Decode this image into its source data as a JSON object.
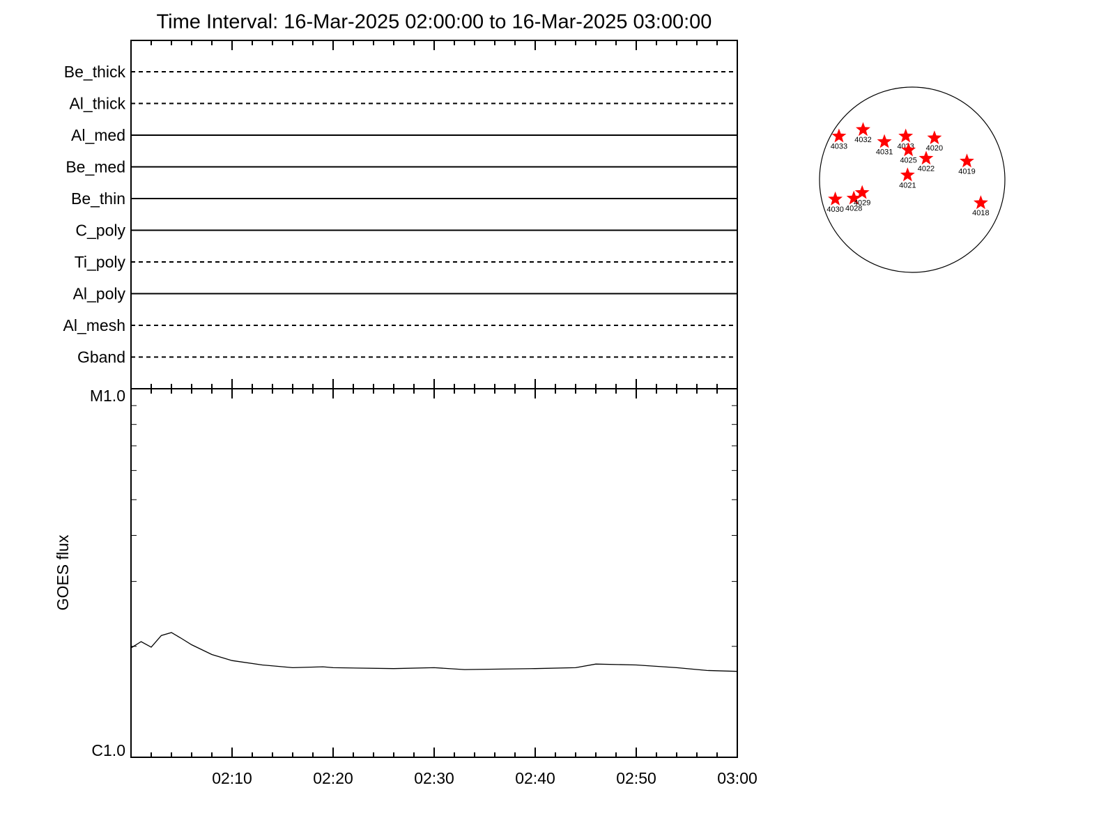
{
  "chart_data": [
    {
      "type": "filter-strip",
      "title": "Time Interval: 16-Mar-2025 02:00:00 to 16-Mar-2025 03:00:00",
      "categories": [
        "Be_thick",
        "Al_thick",
        "Al_med",
        "Be_med",
        "Be_thin",
        "C_poly",
        "Ti_poly",
        "Al_poly",
        "Al_mesh",
        "Gband"
      ],
      "line_styles": [
        "dashed",
        "dashed",
        "solid",
        "solid",
        "solid",
        "solid",
        "dashed",
        "solid",
        "dashed",
        "dashed"
      ],
      "color": "#000000"
    },
    {
      "type": "line",
      "ylabel": "GOES flux",
      "log_scale": true,
      "x": [
        "02:00",
        "02:01",
        "02:02",
        "02:03",
        "02:04",
        "02:05",
        "02:06",
        "02:08",
        "02:10",
        "02:13",
        "02:16",
        "02:19",
        "02:20",
        "02:26",
        "02:30",
        "02:33",
        "02:40",
        "02:44",
        "02:46",
        "02:50",
        "02:54",
        "02:57",
        "03:00"
      ],
      "values": [
        1.98e-06,
        2.06e-06,
        1.99e-06,
        2.14e-06,
        2.18e-06,
        2.1e-06,
        2.02e-06,
        1.9e-06,
        1.83e-06,
        1.78e-06,
        1.75e-06,
        1.76e-06,
        1.75e-06,
        1.74e-06,
        1.75e-06,
        1.73e-06,
        1.74e-06,
        1.75e-06,
        1.79e-06,
        1.78e-06,
        1.75e-06,
        1.72e-06,
        1.71e-06
      ],
      "xlim": [
        "02:00",
        "03:00"
      ],
      "xticks": [
        "02:10",
        "02:20",
        "02:30",
        "02:40",
        "02:50",
        "03:00"
      ],
      "ylim": [
        1e-06,
        1e-05
      ],
      "yticks": [
        {
          "value": 1e-05,
          "label": "M1.0"
        },
        {
          "value": 1e-06,
          "label": "C1.0"
        }
      ],
      "color": "#000000"
    },
    {
      "type": "scatter",
      "labels": [
        "4033",
        "4032",
        "4031",
        "4023",
        "4020",
        "4025",
        "4022",
        "4019",
        "4021",
        "4030",
        "4028",
        "4029",
        "4018"
      ],
      "x": [
        -0.79,
        -0.53,
        -0.3,
        -0.07,
        0.24,
        -0.04,
        0.15,
        0.59,
        -0.05,
        -0.83,
        -0.63,
        -0.54,
        0.74
      ],
      "y": [
        0.47,
        0.54,
        0.41,
        0.47,
        0.45,
        0.32,
        0.23,
        0.2,
        0.05,
        -0.21,
        -0.2,
        -0.14,
        -0.25
      ],
      "xlim": [
        -1,
        1
      ],
      "ylim": [
        -1,
        1
      ],
      "color": "#ff0000"
    }
  ]
}
